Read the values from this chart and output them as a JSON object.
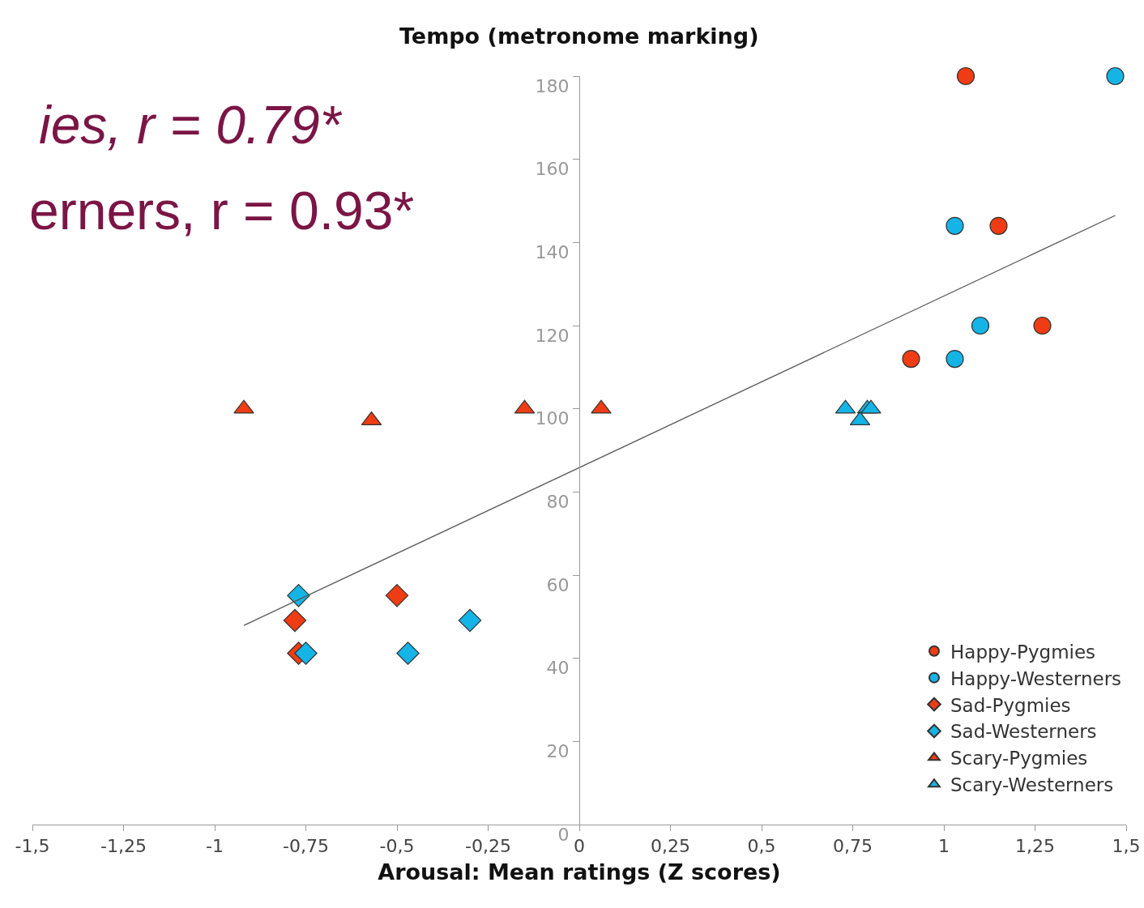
{
  "chart_data": {
    "type": "scatter",
    "xlabel": "Arousal: Mean ratings (Z scores)",
    "ylabel": "Tempo (metronome marking)",
    "annotations": [
      "ies, r = 0.79*",
      "erners, r = 0.93*"
    ],
    "xlim": [
      -1.5,
      1.5
    ],
    "xticks": [
      {
        "value": -1.5,
        "label": "-1,5"
      },
      {
        "value": -1.25,
        "label": "-1,25"
      },
      {
        "value": -1,
        "label": "-1"
      },
      {
        "value": -0.75,
        "label": "-0,75"
      },
      {
        "value": -0.5,
        "label": "-0,5"
      },
      {
        "value": -0.25,
        "label": "-0,25"
      },
      {
        "value": 0,
        "label": "0"
      },
      {
        "value": 0.25,
        "label": "0,25"
      },
      {
        "value": 0.5,
        "label": "0,5"
      },
      {
        "value": 0.75,
        "label": "0,75"
      },
      {
        "value": 1,
        "label": "1"
      },
      {
        "value": 1.25,
        "label": "1,25"
      },
      {
        "value": 1.5,
        "label": "1,5"
      }
    ],
    "ylim": [
      0,
      180
    ],
    "yticks": [
      0,
      20,
      40,
      60,
      80,
      100,
      120,
      140,
      160,
      180
    ],
    "grid": false,
    "legend": "bottom right",
    "series": [
      {
        "name": "Happy-Pygmies",
        "color": "#f03c14",
        "marker": "circle",
        "x": [
          1.06,
          1.15,
          1.27,
          0.91
        ],
        "values": [
          180,
          144,
          120,
          112
        ]
      },
      {
        "name": "Happy-Westerners",
        "color": "#14b4e6",
        "marker": "circle",
        "x": [
          1.47,
          1.03,
          1.1,
          1.03
        ],
        "values": [
          180,
          144,
          120,
          112
        ]
      },
      {
        "name": "Sad-Pygmies",
        "color": "#f03c14",
        "marker": "diamond",
        "x": [
          -0.78,
          -0.77,
          -0.5
        ],
        "values": [
          49.1,
          41.2,
          55.1
        ]
      },
      {
        "name": "Sad-Westerners",
        "color": "#14b4e6",
        "marker": "diamond",
        "x": [
          -0.77,
          -0.75,
          -0.47,
          -0.3
        ],
        "values": [
          55.1,
          41.2,
          41.2,
          49.1
        ]
      },
      {
        "name": "Scary-Pygmies",
        "color": "#f03c14",
        "marker": "triangle",
        "x": [
          -0.92,
          -0.57,
          -0.15,
          0.06
        ],
        "values": [
          100,
          97.2,
          100,
          100
        ]
      },
      {
        "name": "Scary-Westerners",
        "color": "#14b4e6",
        "marker": "triangle",
        "x": [
          0.73,
          0.79,
          0.8,
          0.77
        ],
        "values": [
          100,
          100,
          100,
          97.2
        ]
      },
      {
        "type": "line",
        "color": "#555555",
        "x": [
          -0.92,
          1.47
        ],
        "values": [
          47.9,
          146.5
        ]
      }
    ]
  }
}
